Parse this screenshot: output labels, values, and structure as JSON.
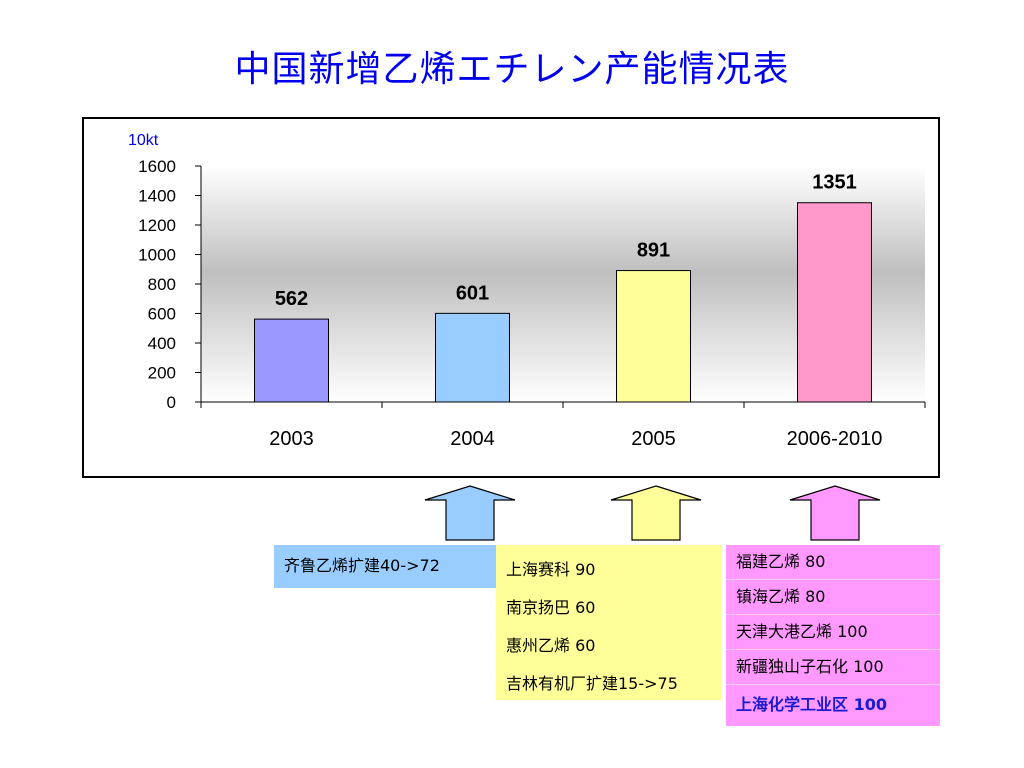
{
  "title": "中国新增乙烯エチレン产能情况表",
  "chart_data": {
    "type": "bar",
    "unit_label": "10kt",
    "categories": [
      "2003",
      "2004",
      "2005",
      "2006-2010"
    ],
    "values": [
      562,
      601,
      891,
      1351
    ],
    "data_labels": [
      "562",
      "601",
      "891",
      "1351"
    ],
    "ylim": [
      0,
      1600
    ],
    "yticks": [
      0,
      200,
      400,
      600,
      800,
      1000,
      1200,
      1400,
      1600
    ],
    "bar_colors": [
      "#9999ff",
      "#99ccff",
      "#ffff99",
      "#ff99cc"
    ],
    "grid": false,
    "legend": false
  },
  "arrows": {
    "colors": [
      "#99ccff",
      "#ffff99",
      "#ff99ff"
    ]
  },
  "boxes": {
    "blue": [
      "齐鲁乙烯扩建40->72"
    ],
    "yellow": [
      "上海赛科 90",
      "南京扬巴 60",
      "惠州乙烯 60",
      "吉林有机厂扩建15->75"
    ],
    "pink": [
      "福建乙烯 80",
      "镇海乙烯 80",
      "天津大港乙烯 100",
      "新疆独山子石化 100",
      "上海化学工业区 100"
    ]
  }
}
